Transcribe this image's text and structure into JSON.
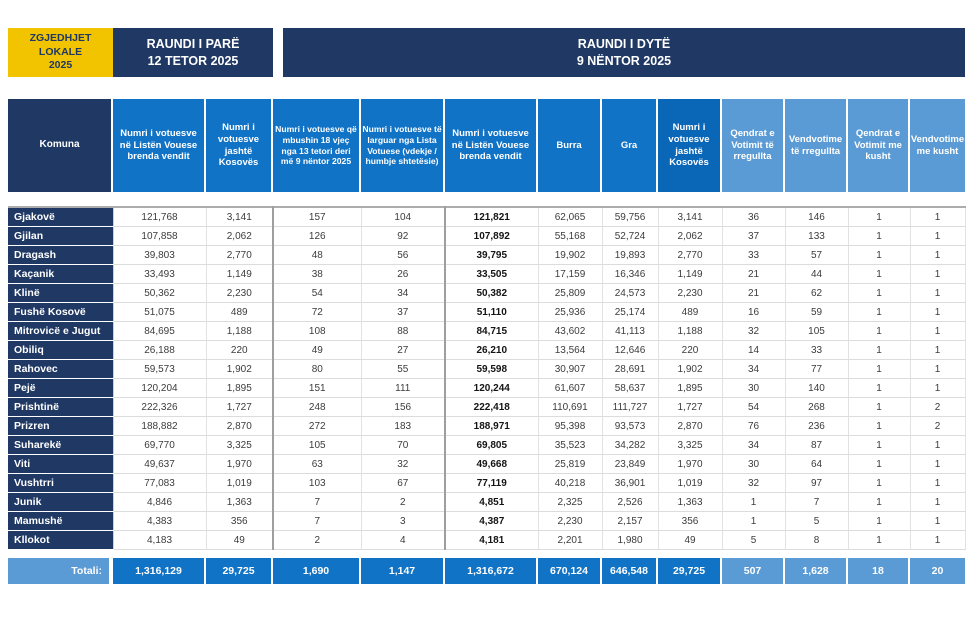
{
  "brand": {
    "title": "ZGJEDHJET\nLOKALE\n2025"
  },
  "banners": {
    "round1": "RAUNDI I PARË\n12 TETOR 2025",
    "round2": "RAUNDI I DYTË\n9 NËNTOR 2025"
  },
  "colors": {
    "navy": "#1F3864",
    "medium_blue": "#1173C6",
    "dark_blue": "#0A66B6",
    "light_blue": "#5B9BD5",
    "yellow": "#F2C400"
  },
  "columns": [
    "Komuna",
    "Numri i votuesve në Listën Vouese brenda vendit",
    "Numri i votuesve jashtë Kosovës",
    "Numri i votuesve që mbushin 18 vjeç nga 13 tetori deri më 9 nëntor 2025",
    "Numri i votuesve të larguar nga Lista Votuese (vdekje / humbje shtetësie)",
    "Numri i votuesve në Listën Vouese brenda vendit",
    "Burra",
    "Gra",
    "Numri i votuesve jashtë Kosovës",
    "Qendrat e Votimit të rregullta",
    "Vendvotime të rregullta",
    "Qendrat e Votimit me kusht",
    "Vendvotime me kusht"
  ],
  "rows": [
    [
      "Gjakovë",
      "121,768",
      "3,141",
      "157",
      "104",
      "121,821",
      "62,065",
      "59,756",
      "3,141",
      "36",
      "146",
      "1",
      "1"
    ],
    [
      "Gjilan",
      "107,858",
      "2,062",
      "126",
      "92",
      "107,892",
      "55,168",
      "52,724",
      "2,062",
      "37",
      "133",
      "1",
      "1"
    ],
    [
      "Dragash",
      "39,803",
      "2,770",
      "48",
      "56",
      "39,795",
      "19,902",
      "19,893",
      "2,770",
      "33",
      "57",
      "1",
      "1"
    ],
    [
      "Kaçanik",
      "33,493",
      "1,149",
      "38",
      "26",
      "33,505",
      "17,159",
      "16,346",
      "1,149",
      "21",
      "44",
      "1",
      "1"
    ],
    [
      "Klinë",
      "50,362",
      "2,230",
      "54",
      "34",
      "50,382",
      "25,809",
      "24,573",
      "2,230",
      "21",
      "62",
      "1",
      "1"
    ],
    [
      "Fushë Kosovë",
      "51,075",
      "489",
      "72",
      "37",
      "51,110",
      "25,936",
      "25,174",
      "489",
      "16",
      "59",
      "1",
      "1"
    ],
    [
      "Mitrovicë e Jugut",
      "84,695",
      "1,188",
      "108",
      "88",
      "84,715",
      "43,602",
      "41,113",
      "1,188",
      "32",
      "105",
      "1",
      "1"
    ],
    [
      "Obiliq",
      "26,188",
      "220",
      "49",
      "27",
      "26,210",
      "13,564",
      "12,646",
      "220",
      "14",
      "33",
      "1",
      "1"
    ],
    [
      "Rahovec",
      "59,573",
      "1,902",
      "80",
      "55",
      "59,598",
      "30,907",
      "28,691",
      "1,902",
      "34",
      "77",
      "1",
      "1"
    ],
    [
      "Pejë",
      "120,204",
      "1,895",
      "151",
      "111",
      "120,244",
      "61,607",
      "58,637",
      "1,895",
      "30",
      "140",
      "1",
      "1"
    ],
    [
      "Prishtinë",
      "222,326",
      "1,727",
      "248",
      "156",
      "222,418",
      "110,691",
      "111,727",
      "1,727",
      "54",
      "268",
      "1",
      "2"
    ],
    [
      "Prizren",
      "188,882",
      "2,870",
      "272",
      "183",
      "188,971",
      "95,398",
      "93,573",
      "2,870",
      "76",
      "236",
      "1",
      "2"
    ],
    [
      "Suharekë",
      "69,770",
      "3,325",
      "105",
      "70",
      "69,805",
      "35,523",
      "34,282",
      "3,325",
      "34",
      "87",
      "1",
      "1"
    ],
    [
      "Viti",
      "49,637",
      "1,970",
      "63",
      "32",
      "49,668",
      "25,819",
      "23,849",
      "1,970",
      "30",
      "64",
      "1",
      "1"
    ],
    [
      "Vushtrri",
      "77,083",
      "1,019",
      "103",
      "67",
      "77,119",
      "40,218",
      "36,901",
      "1,019",
      "32",
      "97",
      "1",
      "1"
    ],
    [
      "Junik",
      "4,846",
      "1,363",
      "7",
      "2",
      "4,851",
      "2,325",
      "2,526",
      "1,363",
      "1",
      "7",
      "1",
      "1"
    ],
    [
      "Mamushë",
      "4,383",
      "356",
      "7",
      "3",
      "4,387",
      "2,230",
      "2,157",
      "356",
      "1",
      "5",
      "1",
      "1"
    ],
    [
      "Kllokot",
      "4,183",
      "49",
      "2",
      "4",
      "4,181",
      "2,201",
      "1,980",
      "49",
      "5",
      "8",
      "1",
      "1"
    ]
  ],
  "totals": {
    "label": "Totali:",
    "values": [
      "1,316,129",
      "29,725",
      "1,690",
      "1,147",
      "1,316,672",
      "670,124",
      "646,548",
      "29,725",
      "507",
      "1,628",
      "18",
      "20"
    ]
  }
}
